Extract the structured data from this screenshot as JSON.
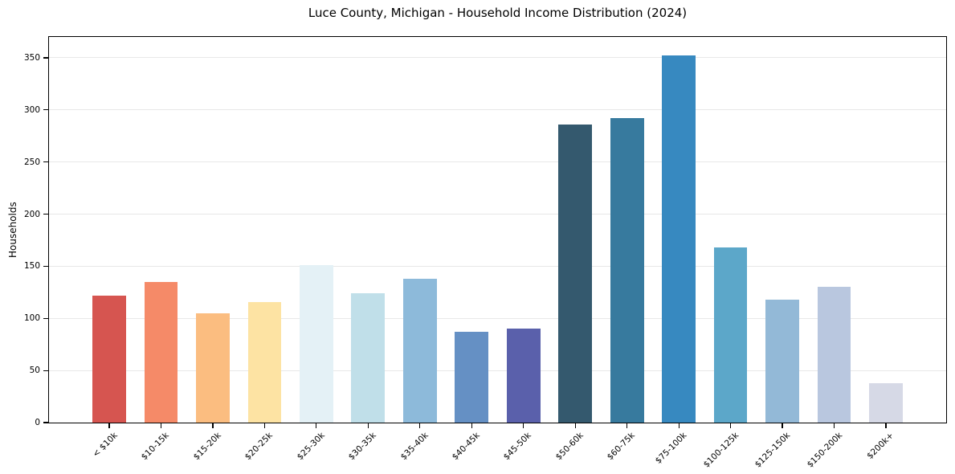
{
  "chart_data": {
    "type": "bar",
    "title": "Luce County, Michigan - Household Income Distribution (2024)",
    "xlabel": "",
    "ylabel": "Households",
    "categories": [
      "< $10k",
      "$10-15k",
      "$15-20k",
      "$20-25k",
      "$25-30k",
      "$30-35k",
      "$35-40k",
      "$40-45k",
      "$45-50k",
      "$50-60k",
      "$60-75k",
      "$75-100k",
      "$100-125k",
      "$125-150k",
      "$150-200k",
      "$200k+"
    ],
    "values": [
      122,
      135,
      105,
      116,
      151,
      124,
      138,
      87,
      90,
      286,
      292,
      352,
      168,
      118,
      130,
      38
    ],
    "bar_colors": [
      "#d65550",
      "#f58a68",
      "#fbbd80",
      "#fde3a3",
      "#e4f1f6",
      "#c0dfe9",
      "#8dbada",
      "#6590c4",
      "#5a60ab",
      "#34596e",
      "#377a9e",
      "#3789c0",
      "#5ca7c9",
      "#93b9d7",
      "#b9c7df",
      "#d6d9e6"
    ],
    "yticks": [
      0,
      50,
      100,
      150,
      200,
      250,
      300,
      350
    ],
    "ylim": [
      0,
      370
    ],
    "grid": true,
    "legend_position": "none",
    "bar_width_ratio": 0.8,
    "colors": {
      "background": "#ffffff",
      "grid": "#e8e8e8",
      "axis": "#000000",
      "text": "#000000"
    }
  }
}
